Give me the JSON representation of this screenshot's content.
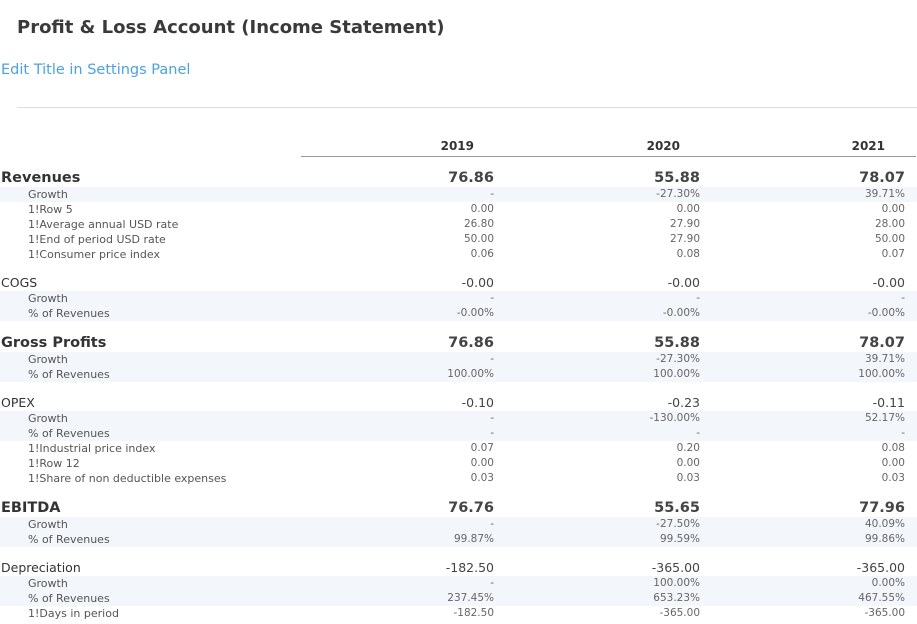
{
  "page": {
    "title": "Profit & Loss Account (Income Statement)",
    "subtitle_link": "Edit Title in Settings Panel"
  },
  "colors": {
    "link": "#4aa3df",
    "row_shade": "#f3f6fb"
  },
  "columns": [
    "2019",
    "2020",
    "2021"
  ],
  "rows": [
    {
      "type": "major",
      "label": "Revenues",
      "values": [
        "76.86",
        "55.88",
        "78.07"
      ]
    },
    {
      "type": "sub",
      "label": "Growth",
      "values": [
        "-",
        "-27.30%",
        "39.71%"
      ],
      "shade": true
    },
    {
      "type": "sub",
      "label": "1!Row 5",
      "values": [
        "0.00",
        "0.00",
        "0.00"
      ]
    },
    {
      "type": "sub",
      "label": "1!Average annual USD rate",
      "values": [
        "26.80",
        "27.90",
        "28.00"
      ]
    },
    {
      "type": "sub",
      "label": "1!End of period USD rate",
      "values": [
        "50.00",
        "27.90",
        "50.00"
      ]
    },
    {
      "type": "sub",
      "label": "1!Consumer price index",
      "values": [
        "0.06",
        "0.08",
        "0.07"
      ]
    },
    {
      "type": "minor",
      "label": "COGS",
      "values": [
        "-0.00",
        "-0.00",
        "-0.00"
      ]
    },
    {
      "type": "sub",
      "label": "Growth",
      "values": [
        "-",
        "-",
        "-"
      ],
      "shade": true
    },
    {
      "type": "sub",
      "label": "% of Revenues",
      "values": [
        "-0.00%",
        "-0.00%",
        "-0.00%"
      ],
      "shade": true
    },
    {
      "type": "major",
      "label": "Gross Profits",
      "values": [
        "76.86",
        "55.88",
        "78.07"
      ]
    },
    {
      "type": "sub",
      "label": "Growth",
      "values": [
        "-",
        "-27.30%",
        "39.71%"
      ],
      "shade": true
    },
    {
      "type": "sub",
      "label": "% of Revenues",
      "values": [
        "100.00%",
        "100.00%",
        "100.00%"
      ],
      "shade": true
    },
    {
      "type": "minor",
      "label": "OPEX",
      "values": [
        "-0.10",
        "-0.23",
        "-0.11"
      ]
    },
    {
      "type": "sub",
      "label": "Growth",
      "values": [
        "-",
        "-130.00%",
        "52.17%"
      ],
      "shade": true
    },
    {
      "type": "sub",
      "label": "% of Revenues",
      "values": [
        "-",
        "-",
        "-"
      ],
      "shade": true
    },
    {
      "type": "sub",
      "label": "1!Industrial price index",
      "values": [
        "0.07",
        "0.20",
        "0.08"
      ]
    },
    {
      "type": "sub",
      "label": "1!Row 12",
      "values": [
        "0.00",
        "0.00",
        "0.00"
      ]
    },
    {
      "type": "sub",
      "label": "1!Share of non deductible expenses",
      "values": [
        "0.03",
        "0.03",
        "0.03"
      ]
    },
    {
      "type": "major",
      "label": "EBITDA",
      "values": [
        "76.76",
        "55.65",
        "77.96"
      ]
    },
    {
      "type": "sub",
      "label": "Growth",
      "values": [
        "-",
        "-27.50%",
        "40.09%"
      ],
      "shade": true
    },
    {
      "type": "sub",
      "label": "% of Revenues",
      "values": [
        "99.87%",
        "99.59%",
        "99.86%"
      ],
      "shade": true
    },
    {
      "type": "minor",
      "label": "Depreciation",
      "values": [
        "-182.50",
        "-365.00",
        "-365.00"
      ]
    },
    {
      "type": "sub",
      "label": "Growth",
      "values": [
        "-",
        "100.00%",
        "0.00%"
      ],
      "shade": true
    },
    {
      "type": "sub",
      "label": "% of Revenues",
      "values": [
        "237.45%",
        "653.23%",
        "467.55%"
      ],
      "shade": true
    },
    {
      "type": "sub",
      "label": "1!Days in period",
      "values": [
        "-182.50",
        "-365.00",
        "-365.00"
      ]
    }
  ]
}
